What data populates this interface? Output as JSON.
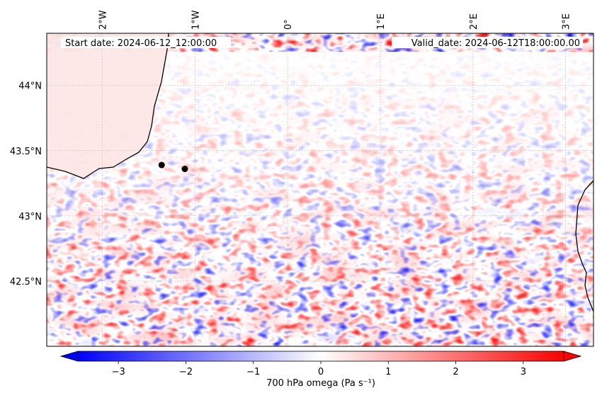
{
  "map": {
    "start_label": "Start date: 2024-06-12_12:00:00",
    "valid_label": "Valid_date: 2024-06-12T18:00:00.00",
    "lon_ticks": [
      "2°W",
      "1°W",
      "0°",
      "1°E",
      "2°E",
      "3°E"
    ],
    "lat_ticks": [
      "44°N",
      "43.5°N",
      "43°N",
      "42.5°N"
    ],
    "extent": {
      "lon": [
        -2.6,
        3.3
      ],
      "lat": [
        42.0,
        44.4
      ]
    },
    "grid": true,
    "points": [
      {
        "lon": -1.36,
        "lat": 43.39
      },
      {
        "lon": -1.11,
        "lat": 43.36
      }
    ]
  },
  "colorbar": {
    "label": "700 hPa omega (Pa s⁻¹)",
    "ticks": [
      "−3",
      "−2",
      "−1",
      "0",
      "1",
      "2",
      "3"
    ],
    "range": [
      -3.6,
      3.6
    ],
    "colors": {
      "low": "#0000ff",
      "mid": "#ffffff",
      "high": "#ff0000"
    }
  }
}
